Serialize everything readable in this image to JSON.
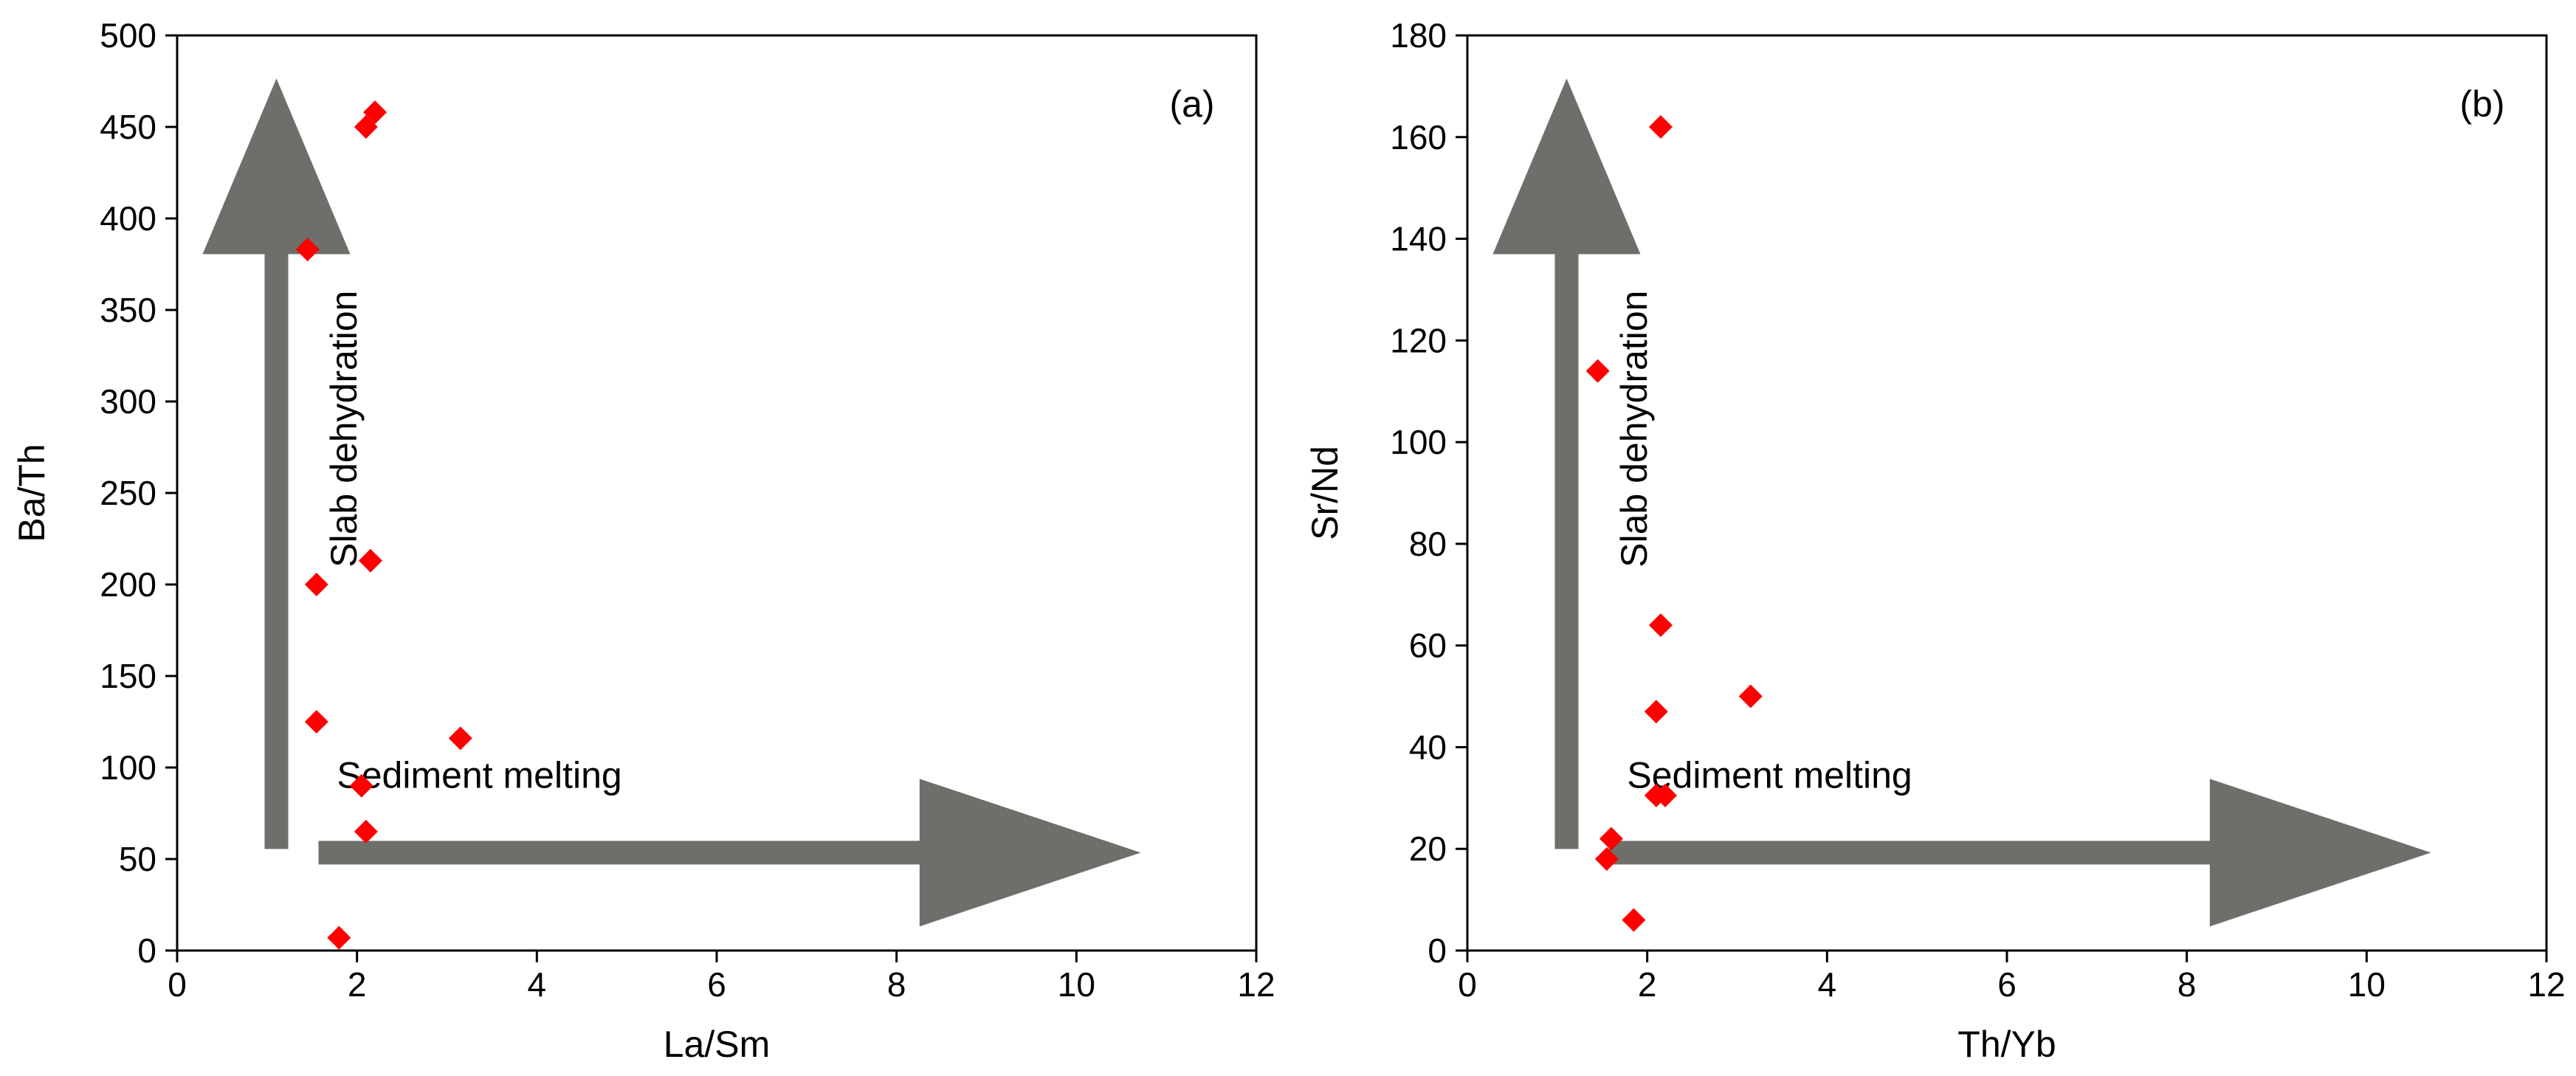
{
  "chart_data": [
    {
      "type": "scatter",
      "panel_label": "(a)",
      "xlabel": "La/Sm",
      "ylabel": "Ba/Th",
      "xlim": [
        0,
        12
      ],
      "ylim": [
        0,
        500
      ],
      "xticks": [
        0,
        2,
        4,
        6,
        8,
        10,
        12
      ],
      "yticks": [
        0,
        50,
        100,
        150,
        200,
        250,
        300,
        350,
        400,
        450,
        500
      ],
      "marker_color": "#ff0000",
      "arrow_color": "#6e6e6a",
      "points": [
        {
          "x": 2.2,
          "y": 458
        },
        {
          "x": 2.1,
          "y": 450
        },
        {
          "x": 1.45,
          "y": 383
        },
        {
          "x": 2.15,
          "y": 213
        },
        {
          "x": 1.55,
          "y": 200
        },
        {
          "x": 1.55,
          "y": 125
        },
        {
          "x": 3.15,
          "y": 116
        },
        {
          "x": 2.05,
          "y": 90
        },
        {
          "x": 2.1,
          "y": 65
        },
        {
          "x": 1.8,
          "y": 7
        }
      ],
      "annotations": {
        "vertical_arrow_label": "Slab dehydration",
        "horizontal_arrow_label": "Sediment melting"
      }
    },
    {
      "type": "scatter",
      "panel_label": "(b)",
      "xlabel": "Th/Yb",
      "ylabel": "Sr/Nd",
      "xlim": [
        0,
        12
      ],
      "ylim": [
        0,
        180
      ],
      "xticks": [
        0,
        2,
        4,
        6,
        8,
        10,
        12
      ],
      "yticks": [
        0,
        20,
        40,
        60,
        80,
        100,
        120,
        140,
        160,
        180
      ],
      "marker_color": "#ff0000",
      "arrow_color": "#6e6e6a",
      "points": [
        {
          "x": 2.15,
          "y": 162
        },
        {
          "x": 1.45,
          "y": 114
        },
        {
          "x": 2.15,
          "y": 64
        },
        {
          "x": 3.15,
          "y": 50
        },
        {
          "x": 2.1,
          "y": 47
        },
        {
          "x": 2.1,
          "y": 30.5
        },
        {
          "x": 2.2,
          "y": 30.5
        },
        {
          "x": 1.6,
          "y": 22
        },
        {
          "x": 1.55,
          "y": 18
        },
        {
          "x": 1.85,
          "y": 6
        }
      ],
      "annotations": {
        "vertical_arrow_label": "Slab dehydration",
        "horizontal_arrow_label": "Sediment melting"
      }
    }
  ]
}
